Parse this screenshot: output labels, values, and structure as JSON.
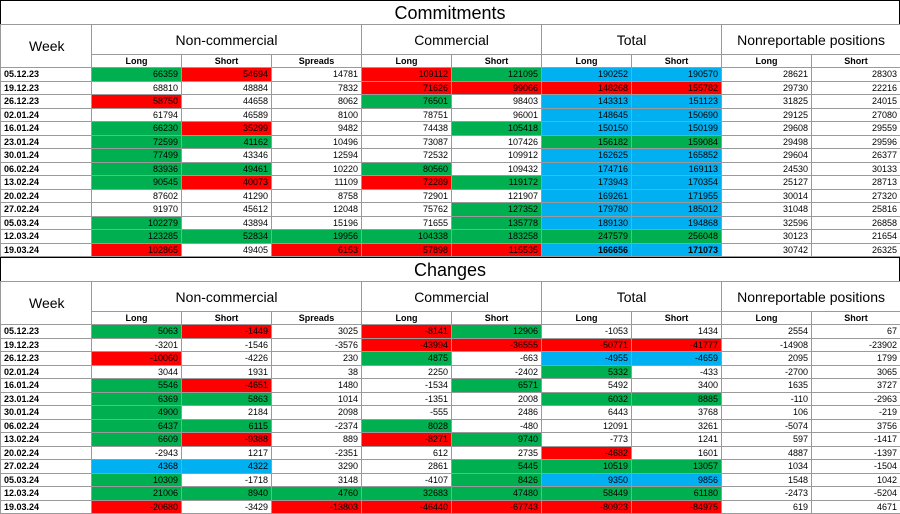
{
  "colors": {
    "green": "#00b050",
    "red": "#ff0000",
    "blue": "#00b0f0"
  },
  "groups": {
    "week": "Week",
    "noncommercial": "Non-commercial",
    "commercial": "Commercial",
    "total": "Total",
    "nonreportable": "Nonreportable positions"
  },
  "subheaders": [
    "Long",
    "Short",
    "Spreads",
    "Long",
    "Short",
    "Long",
    "Short",
    "Long",
    "Short"
  ],
  "commitments": {
    "title": "Commitments",
    "rows": [
      {
        "date": "05.12.23",
        "v": [
          "66359",
          "54694",
          "14781",
          "109112",
          "121095",
          "190252",
          "190570",
          "28621",
          "28303"
        ],
        "c": [
          "green",
          "red",
          "",
          "red",
          "green",
          "blue",
          "blue",
          "",
          ""
        ]
      },
      {
        "date": "19.12.23",
        "v": [
          "68810",
          "48884",
          "7832",
          "71626",
          "99066",
          "148268",
          "155782",
          "29730",
          "22216"
        ],
        "c": [
          "",
          "",
          "",
          "red",
          "red",
          "red",
          "red",
          "",
          ""
        ]
      },
      {
        "date": "26.12.23",
        "v": [
          "58750",
          "44658",
          "8062",
          "76501",
          "98403",
          "143313",
          "151123",
          "31825",
          "24015"
        ],
        "c": [
          "red",
          "",
          "",
          "green",
          "",
          "blue",
          "blue",
          "",
          ""
        ]
      },
      {
        "date": "02.01.24",
        "v": [
          "61794",
          "46589",
          "8100",
          "78751",
          "96001",
          "148645",
          "150690",
          "29125",
          "27080"
        ],
        "c": [
          "",
          "",
          "",
          "",
          "",
          "blue",
          "blue",
          "",
          ""
        ]
      },
      {
        "date": "16.01.24",
        "v": [
          "66230",
          "35299",
          "9482",
          "74438",
          "105418",
          "150150",
          "150199",
          "29608",
          "29559"
        ],
        "c": [
          "green",
          "red",
          "",
          "",
          "green",
          "blue",
          "blue",
          "",
          ""
        ]
      },
      {
        "date": "23.01.24",
        "v": [
          "72599",
          "41162",
          "10496",
          "73087",
          "107426",
          "156182",
          "159084",
          "29498",
          "29596"
        ],
        "c": [
          "green",
          "green",
          "",
          "",
          "",
          "green",
          "green",
          "",
          ""
        ]
      },
      {
        "date": "30.01.24",
        "v": [
          "77499",
          "43346",
          "12594",
          "72532",
          "109912",
          "162625",
          "165852",
          "29604",
          "26377"
        ],
        "c": [
          "green",
          "",
          "",
          "",
          "",
          "blue",
          "blue",
          "",
          ""
        ]
      },
      {
        "date": "06.02.24",
        "v": [
          "83936",
          "49461",
          "10220",
          "80560",
          "109432",
          "174716",
          "169113",
          "24530",
          "30133"
        ],
        "c": [
          "green",
          "green",
          "",
          "green",
          "",
          "blue",
          "blue",
          "",
          ""
        ]
      },
      {
        "date": "13.02.24",
        "v": [
          "90545",
          "40073",
          "11109",
          "72289",
          "119172",
          "173943",
          "170354",
          "25127",
          "28713"
        ],
        "c": [
          "green",
          "red",
          "",
          "red",
          "green",
          "blue",
          "blue",
          "",
          ""
        ]
      },
      {
        "date": "20.02.24",
        "v": [
          "87602",
          "41290",
          "8758",
          "72901",
          "121907",
          "169261",
          "171955",
          "30014",
          "27320"
        ],
        "c": [
          "",
          "",
          "",
          "",
          "",
          "blue",
          "blue",
          "",
          ""
        ]
      },
      {
        "date": "27.02.24",
        "v": [
          "91970",
          "45612",
          "12048",
          "75762",
          "127352",
          "179780",
          "185012",
          "31048",
          "25816"
        ],
        "c": [
          "",
          "",
          "",
          "",
          "green",
          "blue",
          "blue",
          "",
          ""
        ]
      },
      {
        "date": "05.03.24",
        "v": [
          "102279",
          "43894",
          "15196",
          "71655",
          "135778",
          "189130",
          "194868",
          "32596",
          "26858"
        ],
        "c": [
          "green",
          "",
          "",
          "",
          "green",
          "blue",
          "blue",
          "",
          ""
        ]
      },
      {
        "date": "12.03.24",
        "v": [
          "123285",
          "52834",
          "19956",
          "104338",
          "183258",
          "247579",
          "256048",
          "30123",
          "21654"
        ],
        "c": [
          "green",
          "green",
          "green",
          "green",
          "green",
          "green",
          "green",
          "",
          ""
        ]
      },
      {
        "date": "19.03.24",
        "v": [
          "102865",
          "49405",
          "6153",
          "57898",
          "115535",
          "166656",
          "171073",
          "30742",
          "26325"
        ],
        "c": [
          "red",
          "",
          "red",
          "red",
          "red",
          "blue",
          "blue",
          "",
          ""
        ],
        "b": [
          false,
          false,
          false,
          false,
          false,
          true,
          true,
          false,
          false
        ]
      }
    ]
  },
  "changes": {
    "title": "Changes",
    "rows": [
      {
        "date": "05.12.23",
        "v": [
          "5063",
          "-1449",
          "3025",
          "-8141",
          "12906",
          "-1053",
          "1434",
          "2554",
          "67"
        ],
        "c": [
          "green",
          "red",
          "",
          "red",
          "green",
          "",
          "",
          "",
          ""
        ]
      },
      {
        "date": "19.12.23",
        "v": [
          "-3201",
          "-1546",
          "-3576",
          "-43994",
          "-36555",
          "-50771",
          "-41777",
          "-14908",
          "-23902"
        ],
        "c": [
          "",
          "",
          "",
          "red",
          "red",
          "red",
          "red",
          "",
          ""
        ]
      },
      {
        "date": "26.12.23",
        "v": [
          "-10060",
          "-4226",
          "230",
          "4875",
          "-663",
          "-4955",
          "-4659",
          "2095",
          "1799"
        ],
        "c": [
          "red",
          "",
          "",
          "green",
          "",
          "blue",
          "blue",
          "",
          ""
        ]
      },
      {
        "date": "02.01.24",
        "v": [
          "3044",
          "1931",
          "38",
          "2250",
          "-2402",
          "5332",
          "-433",
          "-2700",
          "3065"
        ],
        "c": [
          "",
          "",
          "",
          "",
          "",
          "green",
          "",
          "",
          ""
        ]
      },
      {
        "date": "16.01.24",
        "v": [
          "5546",
          "-4651",
          "1480",
          "-1534",
          "6571",
          "5492",
          "3400",
          "1635",
          "3727"
        ],
        "c": [
          "green",
          "red",
          "",
          "",
          "green",
          "",
          "",
          "",
          ""
        ]
      },
      {
        "date": "23.01.24",
        "v": [
          "6369",
          "5863",
          "1014",
          "-1351",
          "2008",
          "6032",
          "8885",
          "-110",
          "-2963"
        ],
        "c": [
          "green",
          "green",
          "",
          "",
          "",
          "green",
          "green",
          "",
          ""
        ]
      },
      {
        "date": "30.01.24",
        "v": [
          "4900",
          "2184",
          "2098",
          "-555",
          "2486",
          "6443",
          "3768",
          "106",
          "-219"
        ],
        "c": [
          "green",
          "",
          "",
          "",
          "",
          "",
          "",
          "",
          ""
        ]
      },
      {
        "date": "06.02.24",
        "v": [
          "6437",
          "6115",
          "-2374",
          "8028",
          "-480",
          "12091",
          "3261",
          "-5074",
          "3756"
        ],
        "c": [
          "green",
          "green",
          "",
          "green",
          "",
          "",
          "",
          "",
          ""
        ]
      },
      {
        "date": "13.02.24",
        "v": [
          "6609",
          "-9388",
          "889",
          "-8271",
          "9740",
          "-773",
          "1241",
          "597",
          "-1417"
        ],
        "c": [
          "green",
          "red",
          "",
          "red",
          "green",
          "",
          "",
          "",
          ""
        ]
      },
      {
        "date": "20.02.24",
        "v": [
          "-2943",
          "1217",
          "-2351",
          "612",
          "2735",
          "-4682",
          "1601",
          "4887",
          "-1397"
        ],
        "c": [
          "",
          "",
          "",
          "",
          "",
          "red",
          "",
          "",
          ""
        ]
      },
      {
        "date": "27.02.24",
        "v": [
          "4368",
          "4322",
          "3290",
          "2861",
          "5445",
          "10519",
          "13057",
          "1034",
          "-1504"
        ],
        "c": [
          "blue",
          "blue",
          "",
          "",
          "green",
          "green",
          "green",
          "",
          ""
        ]
      },
      {
        "date": "05.03.24",
        "v": [
          "10309",
          "-1718",
          "3148",
          "-4107",
          "8426",
          "9350",
          "9856",
          "1548",
          "1042"
        ],
        "c": [
          "green",
          "",
          "",
          "",
          "green",
          "blue",
          "blue",
          "",
          ""
        ]
      },
      {
        "date": "12.03.24",
        "v": [
          "21006",
          "8940",
          "4760",
          "32683",
          "47480",
          "58449",
          "61180",
          "-2473",
          "-5204"
        ],
        "c": [
          "green",
          "green",
          "green",
          "green",
          "green",
          "green",
          "green",
          "",
          ""
        ]
      },
      {
        "date": "19.03.24",
        "v": [
          "-20680",
          "-3429",
          "-13803",
          "-46440",
          "-67743",
          "-80923",
          "-84975",
          "619",
          "4671"
        ],
        "c": [
          "red",
          "",
          "red",
          "red",
          "red",
          "red",
          "red",
          "",
          ""
        ]
      }
    ]
  }
}
